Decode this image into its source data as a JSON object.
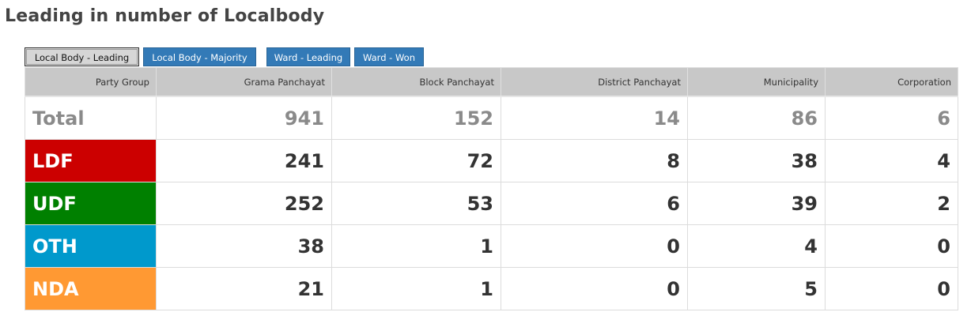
{
  "page": {
    "title": "Leading in number of Localbody"
  },
  "tabs": [
    {
      "label": "Local Body - Leading",
      "active": true
    },
    {
      "label": "Local Body - Majority",
      "active": false
    },
    {
      "label": "Ward - Leading",
      "active": false
    },
    {
      "label": "Ward - Won",
      "active": false
    }
  ],
  "table": {
    "headers": [
      "Party Group",
      "Grama Panchayat",
      "Block Panchayat",
      "District Panchayat",
      "Municipality",
      "Corporation"
    ],
    "rows": [
      {
        "party": "Total",
        "color": "#ffffff",
        "values": [
          "941",
          "152",
          "14",
          "86",
          "6"
        ]
      },
      {
        "party": "LDF",
        "color": "#cc0000",
        "values": [
          "241",
          "72",
          "8",
          "38",
          "4"
        ]
      },
      {
        "party": "UDF",
        "color": "#008000",
        "values": [
          "252",
          "53",
          "6",
          "39",
          "2"
        ]
      },
      {
        "party": "OTH",
        "color": "#0099cc",
        "values": [
          "38",
          "1",
          "0",
          "4",
          "0"
        ]
      },
      {
        "party": "NDA",
        "color": "#ff9933",
        "values": [
          "21",
          "1",
          "0",
          "5",
          "0"
        ]
      }
    ]
  }
}
